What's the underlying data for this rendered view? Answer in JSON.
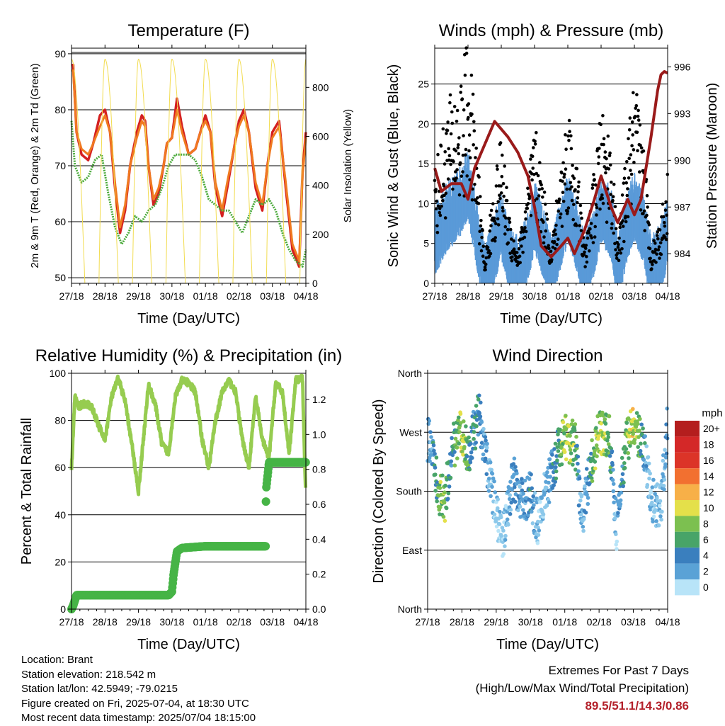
{
  "panels": {
    "temperature": {
      "title": "Temperature (F)",
      "xlabel": "Time (Day/UTC)",
      "ylabel_left": "2m & 9m T (Red, Orange) & 2m Td (Green)",
      "ylabel_right": "Solar Insolation (Yellow)"
    },
    "winds": {
      "title": "Winds (mph) & Pressure (mb)",
      "xlabel": "Time (Day/UTC)",
      "ylabel_left": "Sonic Wind & Gust (Blue, Black)",
      "ylabel_right": "Station Pressure (Maroon)"
    },
    "humidity": {
      "title": "Relative Humidity (%) & Precipitation (in)",
      "xlabel": "Time (Day/UTC)",
      "ylabel_left": "Percent & Total Rainfall"
    },
    "direction": {
      "title": "Wind Direction",
      "xlabel": "Time (Day/UTC)",
      "ylabel_left": "Direction (Colored By Speed)",
      "legend_title": "mph"
    }
  },
  "info": {
    "location": "Location: Brant",
    "elevation": "Station elevation: 218.542 m",
    "latlon": "Station lat/lon: 42.5949; -79.0215",
    "created": "Figure created on Fri, 2025-07-04, at 18:30 UTC",
    "recent": "Most recent data timestamp: 2025/07/04 18:15:00"
  },
  "extremes": {
    "line1": "Extremes For Past 7 Days",
    "line2": "(High/Low/Max Wind/Total Precipitation)",
    "values": "89.5/51.1/14.3/0.86"
  },
  "colors": {
    "temp2m": "#d42020",
    "temp9m": "#f07a20",
    "dewpoint": "#4aaa3a",
    "insolation": "#f2dc50",
    "wind": "#5a9ad8",
    "gust": "#000000",
    "pressure": "#9a1a1a",
    "rh": "#96cc50",
    "precip": "#46b446"
  },
  "chart_data": [
    {
      "type": "line",
      "name": "temperature",
      "x_ticks": [
        "27/18",
        "28/18",
        "29/18",
        "30/18",
        "01/18",
        "02/18",
        "03/18",
        "04/18"
      ],
      "ylim": [
        49,
        91
      ],
      "y_ticks": [
        50,
        60,
        70,
        80,
        90
      ],
      "y2lim": [
        0,
        960
      ],
      "y2_ticks": [
        0,
        200,
        400,
        600,
        800
      ],
      "grid": true,
      "series": [
        {
          "axis": "left",
          "color": "#d42020",
          "x": [
            0,
            0.05,
            0.15,
            0.3,
            0.5,
            0.65,
            0.85,
            1.0,
            1.15,
            1.3,
            1.45,
            1.6,
            1.75,
            1.95,
            2.1,
            2.2,
            2.3,
            2.45,
            2.6,
            2.75,
            2.85,
            3.0,
            3.15,
            3.3,
            3.5,
            3.7,
            3.85,
            4.0,
            4.15,
            4.3,
            4.5,
            4.65,
            4.85,
            5.0,
            5.15,
            5.3,
            5.5,
            5.7,
            5.85,
            6.0,
            6.2,
            6.4,
            6.6,
            6.8,
            6.9,
            7.0
          ],
          "y": [
            88,
            88,
            76,
            72,
            71,
            74,
            79,
            80,
            76,
            66,
            58,
            62,
            70,
            76,
            79,
            78,
            70,
            63,
            65,
            70,
            74,
            75,
            82,
            77,
            72,
            73,
            76,
            79,
            76,
            66,
            61,
            66,
            73,
            78,
            80,
            76,
            66,
            62,
            70,
            76,
            78,
            66,
            55,
            52,
            69,
            76
          ]
        },
        {
          "axis": "left",
          "color": "#f07a20",
          "x": [
            0,
            0.05,
            0.15,
            0.3,
            0.5,
            0.65,
            0.85,
            1.0,
            1.15,
            1.3,
            1.45,
            1.6,
            1.75,
            1.95,
            2.1,
            2.2,
            2.3,
            2.45,
            2.6,
            2.75,
            2.85,
            3.0,
            3.15,
            3.3,
            3.5,
            3.7,
            3.85,
            4.0,
            4.15,
            4.3,
            4.5,
            4.65,
            4.85,
            5.0,
            5.15,
            5.3,
            5.5,
            5.7,
            5.85,
            6.0,
            6.2,
            6.4,
            6.6,
            6.8,
            6.9,
            7.0
          ],
          "y": [
            87,
            87,
            76,
            73,
            72,
            74,
            77,
            79,
            76,
            67,
            59,
            63,
            70,
            75,
            78,
            77,
            70,
            64,
            66,
            70,
            74,
            75,
            80,
            76,
            72,
            73,
            76,
            78,
            76,
            67,
            62,
            67,
            73,
            77,
            79,
            76,
            67,
            63,
            70,
            75,
            77,
            67,
            56,
            53,
            68,
            75
          ]
        },
        {
          "axis": "left",
          "color": "#4aaa3a",
          "x": [
            0,
            0.1,
            0.3,
            0.5,
            0.7,
            0.9,
            1.1,
            1.3,
            1.5,
            1.7,
            1.9,
            2.1,
            2.3,
            2.5,
            2.7,
            2.9,
            3.1,
            3.3,
            3.5,
            3.7,
            3.9,
            4.1,
            4.3,
            4.5,
            4.7,
            4.9,
            5.1,
            5.3,
            5.5,
            5.7,
            5.9,
            6.1,
            6.3,
            6.5,
            6.7,
            6.9,
            7.0
          ],
          "y": [
            78,
            70,
            67,
            68,
            71,
            72,
            65,
            59,
            56,
            58,
            61,
            60,
            62,
            63,
            66,
            70,
            72,
            72,
            72,
            71,
            68,
            64,
            63,
            62,
            62,
            60,
            58,
            61,
            64,
            63,
            64,
            62,
            58,
            55,
            53,
            52,
            55
          ]
        },
        {
          "axis": "right",
          "color": "#f2dc50",
          "x": [
            0,
            0.15,
            0.35,
            0.5,
            0.8,
            1.0,
            1.15,
            1.35,
            1.5,
            1.8,
            2.0,
            2.15,
            2.35,
            2.5,
            2.8,
            3.0,
            3.15,
            3.35,
            3.5,
            3.8,
            4.0,
            4.15,
            4.35,
            4.5,
            4.8,
            5.0,
            5.15,
            5.35,
            5.5,
            5.8,
            6.0,
            6.15,
            6.35,
            6.5,
            6.8,
            7.0
          ],
          "y": [
            0,
            300,
            0,
            0,
            0,
            920,
            300,
            0,
            0,
            0,
            920,
            200,
            0,
            0,
            0,
            900,
            300,
            0,
            0,
            0,
            920,
            200,
            0,
            0,
            0,
            900,
            300,
            0,
            0,
            0,
            910,
            300,
            0,
            0,
            0,
            900
          ]
        }
      ]
    },
    {
      "type": "scatter",
      "name": "winds",
      "x_ticks": [
        "27/18",
        "28/18",
        "29/18",
        "30/18",
        "01/18",
        "02/18",
        "03/18",
        "04/18"
      ],
      "ylim": [
        0,
        29.5
      ],
      "y_ticks": [
        0,
        5,
        10,
        15,
        20,
        25
      ],
      "y2lim": [
        982.1,
        997.2
      ],
      "y2_ticks": [
        984,
        987,
        990,
        993,
        996
      ],
      "grid": true,
      "series": [
        {
          "axis": "left",
          "kind": "band",
          "color": "#5a9ad8",
          "x": [
            0,
            0.4,
            0.8,
            1.0,
            1.3,
            1.5,
            1.8,
            2.0,
            2.3,
            2.5,
            2.8,
            3.0,
            3.3,
            3.5,
            3.8,
            4.0,
            4.3,
            4.5,
            4.8,
            5.0,
            5.3,
            5.5,
            5.8,
            6.0,
            6.3,
            6.5,
            6.8,
            7.0
          ],
          "y": [
            6,
            9,
            11,
            13,
            6,
            1,
            5,
            8,
            3,
            2,
            5,
            9,
            5,
            2,
            7,
            10,
            6,
            2,
            6,
            10,
            8,
            2,
            8,
            10,
            7,
            2,
            4,
            7
          ]
        },
        {
          "axis": "left",
          "kind": "points",
          "color": "#000000",
          "x": [
            0,
            0.4,
            0.8,
            1.0,
            1.3,
            1.5,
            1.8,
            2.0,
            2.3,
            2.5,
            2.8,
            3.0,
            3.3,
            3.5,
            3.8,
            4.0,
            4.3,
            4.5,
            4.8,
            5.0,
            5.3,
            5.5,
            5.8,
            6.0,
            6.3,
            6.5,
            6.8,
            7.0
          ],
          "y": [
            10,
            16,
            18,
            22,
            11,
            2,
            9,
            13,
            5,
            3,
            9,
            14,
            8,
            3,
            11,
            16,
            10,
            3,
            10,
            15,
            13,
            3,
            13,
            18,
            12,
            3,
            6,
            10
          ]
        },
        {
          "axis": "right",
          "kind": "line",
          "color": "#9a1a1a",
          "x": [
            0,
            0.2,
            0.5,
            0.8,
            1.0,
            1.2,
            1.5,
            1.8,
            2.0,
            2.2,
            2.5,
            2.8,
            3.0,
            3.2,
            3.5,
            3.8,
            4.0,
            4.2,
            4.5,
            4.8,
            5.0,
            5.3,
            5.5,
            5.8,
            6.0,
            6.2,
            6.5,
            6.7,
            6.8,
            6.9,
            7.0
          ],
          "y": [
            989.5,
            988,
            988.5,
            988.5,
            987.5,
            989.5,
            991,
            992.5,
            992,
            991.5,
            990.5,
            989,
            987,
            984.5,
            983.8,
            984.5,
            985,
            984,
            985.5,
            987.5,
            989,
            987,
            986,
            987.5,
            986.5,
            987.5,
            991.5,
            994.5,
            995.5,
            995.7,
            995.6
          ]
        }
      ]
    },
    {
      "type": "line",
      "name": "humidity",
      "x_ticks": [
        "27/18",
        "28/18",
        "29/18",
        "30/18",
        "01/18",
        "02/18",
        "03/18",
        "04/18"
      ],
      "ylim": [
        0,
        100
      ],
      "y_ticks": [
        0,
        20,
        40,
        60,
        80,
        100
      ],
      "y2lim": [
        0,
        1.35
      ],
      "y2_ticks": [
        0.0,
        0.2,
        0.4,
        0.6,
        0.8,
        1.0,
        1.2
      ],
      "grid": true,
      "series": [
        {
          "axis": "left",
          "color": "#96cc50",
          "x": [
            0,
            0.1,
            0.2,
            0.4,
            0.6,
            0.8,
            1.0,
            1.2,
            1.4,
            1.6,
            1.8,
            2.0,
            2.1,
            2.3,
            2.5,
            2.7,
            2.9,
            3.1,
            3.3,
            3.5,
            3.7,
            3.9,
            4.1,
            4.3,
            4.5,
            4.7,
            4.9,
            5.1,
            5.3,
            5.5,
            5.7,
            5.9,
            6.1,
            6.3,
            6.5,
            6.7,
            6.9,
            7.0
          ],
          "y": [
            60,
            90,
            86,
            87,
            86,
            78,
            72,
            90,
            98,
            88,
            70,
            50,
            65,
            95,
            87,
            70,
            66,
            90,
            97,
            96,
            92,
            72,
            60,
            80,
            92,
            97,
            92,
            72,
            60,
            90,
            72,
            64,
            96,
            92,
            66,
            97,
            98,
            46
          ]
        },
        {
          "axis": "right",
          "kind": "step",
          "color": "#46b446",
          "x": [
            0,
            0.05,
            0.15,
            0.3,
            1.0,
            2.0,
            2.9,
            3.0,
            3.05,
            3.15,
            3.3,
            4.0,
            5.0,
            5.8,
            5.81,
            5.9,
            6.0,
            7.0
          ],
          "y": [
            0.0,
            0.02,
            0.08,
            0.08,
            0.08,
            0.08,
            0.08,
            0.1,
            0.2,
            0.33,
            0.35,
            0.36,
            0.36,
            0.36,
            0.68,
            0.84,
            0.84,
            0.84
          ]
        }
      ]
    },
    {
      "type": "scatter",
      "name": "direction",
      "x_ticks": [
        "27/18",
        "28/18",
        "29/18",
        "30/18",
        "01/18",
        "02/18",
        "03/18",
        "04/18"
      ],
      "ylim": [
        0,
        360
      ],
      "y_ticks": [
        0,
        90,
        180,
        270,
        360
      ],
      "y_tick_labels": [
        "North",
        "East",
        "South",
        "West",
        "North"
      ],
      "grid": true,
      "legend": {
        "placement": "right",
        "labels": [
          "20+",
          "18",
          "16",
          "14",
          "12",
          "10",
          "8",
          "6",
          "4",
          "2",
          "0"
        ]
      },
      "series": [
        {
          "kind": "points-colored-by-speed",
          "x": [
            0.1,
            0.3,
            0.5,
            0.7,
            0.9,
            1.0,
            1.2,
            1.5,
            1.8,
            2.0,
            2.2,
            2.5,
            2.8,
            3.0,
            3.2,
            3.5,
            3.8,
            4.0,
            4.3,
            4.5,
            4.8,
            5.0,
            5.3,
            5.5,
            5.8,
            6.0,
            6.3,
            6.5,
            6.8,
            7.0
          ],
          "y": [
            260,
            180,
            165,
            240,
            270,
            262,
            240,
            300,
            200,
            150,
            110,
            200,
            160,
            175,
            130,
            190,
            240,
            265,
            250,
            140,
            230,
            270,
            265,
            120,
            260,
            275,
            250,
            170,
            150,
            290
          ],
          "speed": [
            4,
            9,
            10,
            6,
            9,
            12,
            7,
            6,
            3,
            2,
            1,
            5,
            4,
            6,
            2,
            3,
            8,
            11,
            9,
            2,
            8,
            11,
            9,
            2,
            9,
            12,
            6,
            2,
            3,
            4
          ]
        }
      ]
    }
  ]
}
